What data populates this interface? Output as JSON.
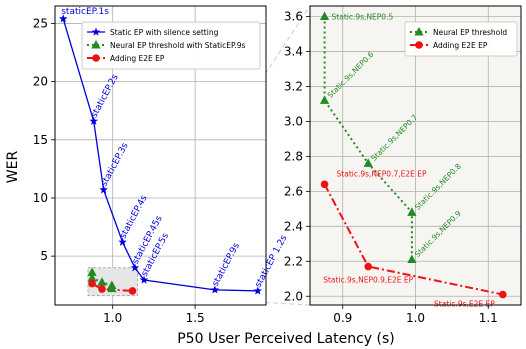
{
  "figure": {
    "xlabel": "P50 User Perceived Latency (s)",
    "ylabel": "WER"
  },
  "colors": {
    "static": "#0000dd",
    "neural": "#228b22",
    "e2e": "#ee1111",
    "connector": "#cccccc",
    "zoom_fill": "#e6e6e6"
  },
  "chart_data": [
    {
      "type": "line",
      "panel": "left",
      "grid": true,
      "xlim": [
        0.65,
        1.93
      ],
      "ylim": [
        0.8,
        26.5
      ],
      "xticks": [
        1.0,
        1.5
      ],
      "xtick_labels": [
        "1.0",
        "1.5"
      ],
      "yticks": [
        5,
        10,
        15,
        20,
        25
      ],
      "ytick_labels": [
        "5",
        "10",
        "15",
        "20",
        "25"
      ],
      "legend_position": "top-right",
      "series": [
        {
          "name": "Static EP with silence setting",
          "color": "#0000dd",
          "marker": "star",
          "line_style": "solid",
          "points": [
            {
              "x": 0.7,
              "y": 25.4,
              "label": "staticEP.1s"
            },
            {
              "x": 0.885,
              "y": 16.6,
              "label": "staticEP.2s"
            },
            {
              "x": 0.945,
              "y": 10.7,
              "label": "staticEP.3s"
            },
            {
              "x": 1.06,
              "y": 6.2,
              "label": "staticEP.4s"
            },
            {
              "x": 1.135,
              "y": 4.0,
              "label": "staticEP.45s"
            },
            {
              "x": 1.19,
              "y": 2.95,
              "label": "staticEP.5s"
            },
            {
              "x": 1.62,
              "y": 2.1,
              "label": "staticEP.9s"
            },
            {
              "x": 1.88,
              "y": 2.01,
              "label": "staticEP 1.2s"
            }
          ]
        },
        {
          "name": "Neural EP threshold with StaticEP.9s",
          "color": "#228b22",
          "marker": "triangle",
          "line_style": "dotted",
          "points": [
            {
              "x": 0.875,
              "y": 3.6
            },
            {
              "x": 0.875,
              "y": 3.12
            },
            {
              "x": 0.935,
              "y": 2.76
            },
            {
              "x": 0.995,
              "y": 2.48
            },
            {
              "x": 0.995,
              "y": 2.21
            }
          ]
        },
        {
          "name": "Adding E2E EP",
          "color": "#ee1111",
          "marker": "circle",
          "line_style": "dashdot",
          "points": [
            {
              "x": 0.875,
              "y": 2.64
            },
            {
              "x": 0.935,
              "y": 2.17
            },
            {
              "x": 1.12,
              "y": 2.01
            }
          ]
        }
      ]
    },
    {
      "type": "line",
      "panel": "right",
      "grid": true,
      "xlim": [
        0.855,
        1.145
      ],
      "ylim": [
        1.95,
        3.66
      ],
      "xticks": [
        0.9,
        1.0,
        1.1
      ],
      "xtick_labels": [
        "0.9",
        "1.0",
        "1.1"
      ],
      "yticks": [
        2.0,
        2.2,
        2.4,
        2.6,
        2.8,
        3.0,
        3.2,
        3.4,
        3.6
      ],
      "ytick_labels": [
        "2.0",
        "2.2",
        "2.4",
        "2.6",
        "2.8",
        "3.0",
        "3.2",
        "3.4",
        "3.6"
      ],
      "legend_position": "top-right",
      "series": [
        {
          "name": "Neural EP threshold",
          "color": "#228b22",
          "marker": "triangle",
          "line_style": "dotted",
          "points": [
            {
              "x": 0.875,
              "y": 3.6,
              "label": "Static.9s,NEP0.5"
            },
            {
              "x": 0.875,
              "y": 3.12,
              "label": "Static.9s,NEP0.6"
            },
            {
              "x": 0.935,
              "y": 2.76,
              "label": "Static.9s,NEP0.7"
            },
            {
              "x": 0.995,
              "y": 2.48,
              "label": "Static.9s,NEP0.8"
            },
            {
              "x": 0.995,
              "y": 2.21,
              "label": "Static.9s,NEP0.9"
            }
          ]
        },
        {
          "name": "Adding E2E EP",
          "color": "#ee1111",
          "marker": "circle",
          "line_style": "dashdot",
          "points": [
            {
              "x": 0.875,
              "y": 2.64,
              "label": "Static.9s,NEP0.7,E2E EP"
            },
            {
              "x": 0.935,
              "y": 2.17,
              "label": "Static.9s,NEP0.9,E2E EP"
            },
            {
              "x": 1.12,
              "y": 2.01,
              "label": "Static.9s,E2E EP"
            }
          ]
        }
      ]
    }
  ],
  "zoom_box": {
    "x": [
      0.85,
      1.15
    ],
    "y": [
      1.6,
      4.0
    ]
  }
}
